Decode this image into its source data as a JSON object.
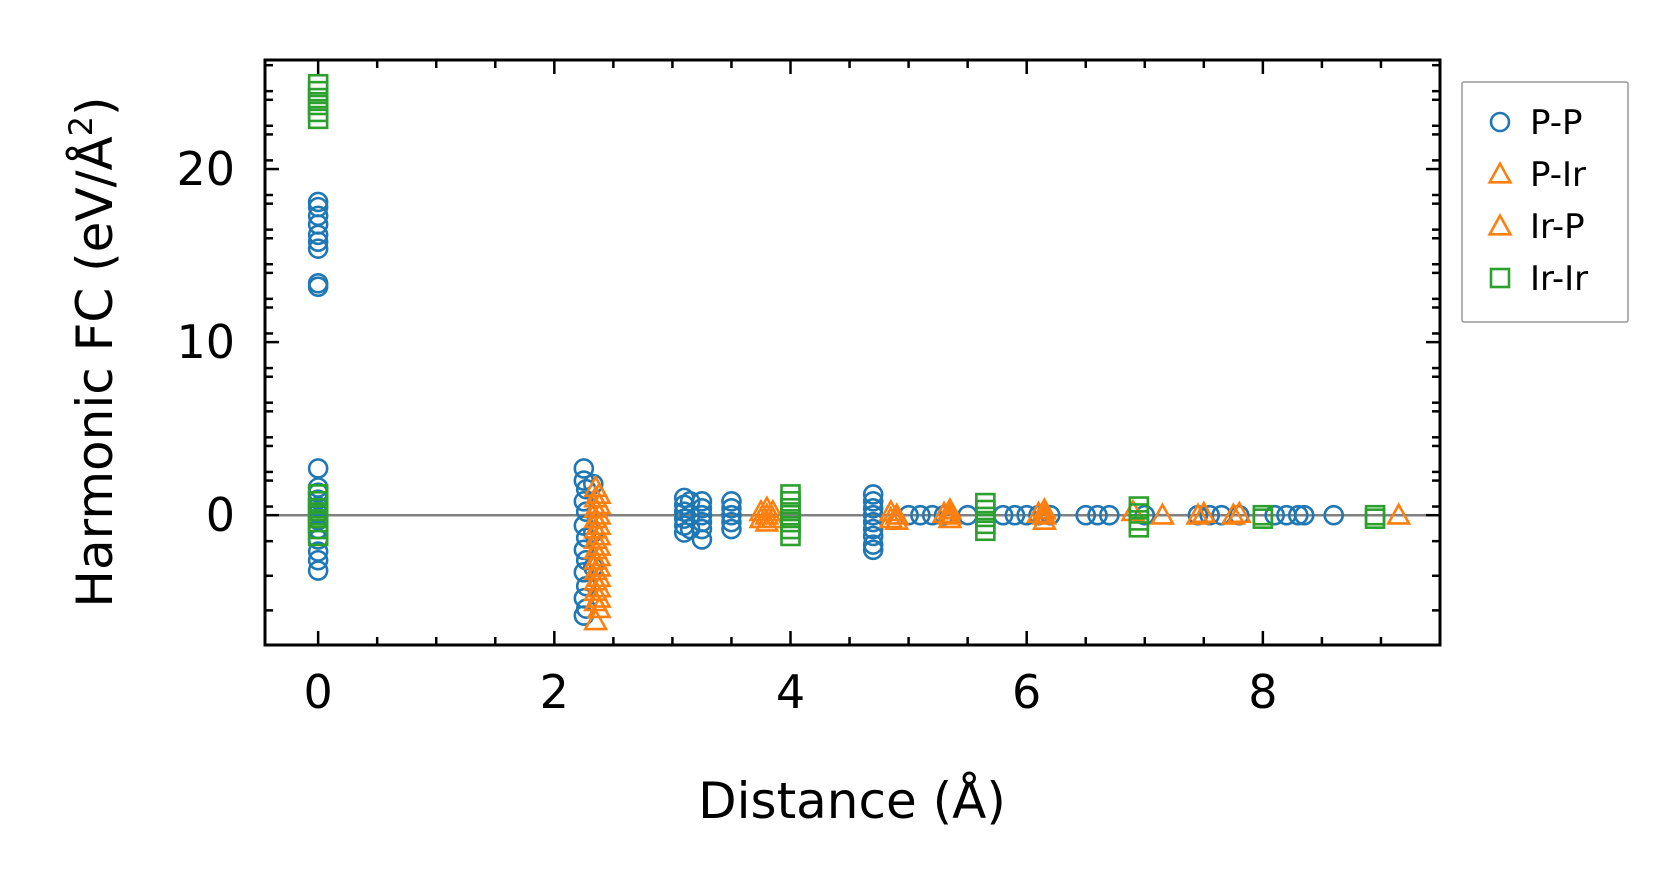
{
  "chart_data": {
    "type": "scatter",
    "title": "",
    "xlabel": "Distance (Å)",
    "ylabel_main": "Harmonic FC (eV/Å",
    "ylabel_sup": "2",
    "ylabel_close": ")",
    "xlim": [
      -0.45,
      9.5
    ],
    "ylim": [
      -7.5,
      26.3
    ],
    "xticks": [
      0,
      2,
      4,
      6,
      8
    ],
    "xtick_labels": [
      "0",
      "2",
      "4",
      "6",
      "8"
    ],
    "yticks": [
      0,
      10,
      20
    ],
    "ytick_labels": [
      "0",
      "10",
      "20"
    ],
    "zero_line": 0,
    "grid": false,
    "legend_position": "outside right, top",
    "series": [
      {
        "name": "P-P",
        "marker": "circle",
        "color": "#1f77b4",
        "points": [
          [
            0,
            18.1
          ],
          [
            0,
            17.8
          ],
          [
            0,
            17.3
          ],
          [
            0,
            16.8
          ],
          [
            0,
            16.2
          ],
          [
            0,
            15.8
          ],
          [
            0,
            15.4
          ],
          [
            0,
            13.4
          ],
          [
            0,
            13.2
          ],
          [
            0,
            2.7
          ],
          [
            0,
            1.6
          ],
          [
            0,
            1.3
          ],
          [
            0,
            0.9
          ],
          [
            0,
            0.5
          ],
          [
            0,
            0.1
          ],
          [
            0,
            -0.3
          ],
          [
            0,
            -0.8
          ],
          [
            0,
            -1.4
          ],
          [
            0,
            -2.1
          ],
          [
            0,
            -2.6
          ],
          [
            0,
            -3.2
          ],
          [
            2.25,
            2.7
          ],
          [
            2.25,
            2.0
          ],
          [
            2.27,
            1.5
          ],
          [
            2.25,
            0.8
          ],
          [
            2.27,
            0.2
          ],
          [
            2.25,
            -0.6
          ],
          [
            2.27,
            -1.3
          ],
          [
            2.25,
            -2.0
          ],
          [
            2.27,
            -2.6
          ],
          [
            2.25,
            -3.3
          ],
          [
            2.27,
            -4.1
          ],
          [
            2.25,
            -4.8
          ],
          [
            2.27,
            -5.4
          ],
          [
            2.25,
            -5.8
          ],
          [
            2.33,
            1.8
          ],
          [
            2.33,
            -1.0
          ],
          [
            2.33,
            -3.0
          ],
          [
            3.1,
            1.0
          ],
          [
            3.1,
            0.6
          ],
          [
            3.1,
            0.2
          ],
          [
            3.1,
            -0.2
          ],
          [
            3.1,
            -0.6
          ],
          [
            3.1,
            -1.0
          ],
          [
            3.15,
            0.8
          ],
          [
            3.15,
            0.0
          ],
          [
            3.15,
            -0.8
          ],
          [
            3.25,
            0.8
          ],
          [
            3.25,
            0.4
          ],
          [
            3.25,
            0.0
          ],
          [
            3.25,
            -0.4
          ],
          [
            3.25,
            -0.8
          ],
          [
            3.25,
            -1.4
          ],
          [
            3.5,
            0.8
          ],
          [
            3.5,
            0.4
          ],
          [
            3.5,
            0.0
          ],
          [
            3.5,
            -0.4
          ],
          [
            3.5,
            -0.8
          ],
          [
            4.7,
            1.2
          ],
          [
            4.7,
            0.8
          ],
          [
            4.7,
            0.4
          ],
          [
            4.7,
            0.0
          ],
          [
            4.7,
            -0.4
          ],
          [
            4.7,
            -0.8
          ],
          [
            4.7,
            -1.2
          ],
          [
            4.7,
            -1.7
          ],
          [
            4.7,
            -2.0
          ],
          [
            5.0,
            0.0
          ],
          [
            5.1,
            0.0
          ],
          [
            5.2,
            0.0
          ],
          [
            5.3,
            0.0
          ],
          [
            5.5,
            0.0
          ],
          [
            5.8,
            0.0
          ],
          [
            5.9,
            0.0
          ],
          [
            6.0,
            0.0
          ],
          [
            6.1,
            0.0
          ],
          [
            6.2,
            0.0
          ],
          [
            6.5,
            0.0
          ],
          [
            6.6,
            0.0
          ],
          [
            6.7,
            0.0
          ],
          [
            7.0,
            0.0
          ],
          [
            7.45,
            0.0
          ],
          [
            7.55,
            0.0
          ],
          [
            7.65,
            0.0
          ],
          [
            7.8,
            0.0
          ],
          [
            8.1,
            0.0
          ],
          [
            8.2,
            0.0
          ],
          [
            8.3,
            0.0
          ],
          [
            8.35,
            0.0
          ],
          [
            8.6,
            0.0
          ]
        ]
      },
      {
        "name": "P-Ir",
        "marker": "triangle",
        "color": "#ff7f0e",
        "points": [
          [
            2.35,
            1.6
          ],
          [
            2.35,
            1.0
          ],
          [
            2.35,
            0.4
          ],
          [
            2.35,
            -0.2
          ],
          [
            2.35,
            -0.8
          ],
          [
            2.35,
            -1.4
          ],
          [
            2.35,
            -2.0
          ],
          [
            2.35,
            -2.6
          ],
          [
            2.35,
            -3.2
          ],
          [
            2.35,
            -3.8
          ],
          [
            2.35,
            -4.4
          ],
          [
            2.35,
            -5.0
          ],
          [
            2.35,
            -6.1
          ],
          [
            3.8,
            0.4
          ],
          [
            3.8,
            0.0
          ],
          [
            3.8,
            -0.4
          ],
          [
            3.85,
            0.2
          ],
          [
            3.85,
            -0.2
          ],
          [
            4.9,
            0.0
          ],
          [
            4.9,
            -0.3
          ],
          [
            5.35,
            0.3
          ],
          [
            5.35,
            0.0
          ],
          [
            5.35,
            -0.2
          ],
          [
            6.15,
            0.3
          ],
          [
            6.15,
            0.0
          ],
          [
            6.15,
            -0.3
          ],
          [
            6.9,
            0.2
          ],
          [
            7.15,
            0.0
          ],
          [
            7.45,
            0.0
          ],
          [
            7.75,
            0.0
          ],
          [
            9.15,
            0.0
          ]
        ]
      },
      {
        "name": "Ir-P",
        "marker": "triangle",
        "color": "#ff7f0e",
        "points": [
          [
            2.38,
            1.2
          ],
          [
            2.38,
            0.6
          ],
          [
            2.38,
            0.0
          ],
          [
            2.38,
            -0.6
          ],
          [
            2.38,
            -1.2
          ],
          [
            2.38,
            -1.8
          ],
          [
            2.38,
            -2.4
          ],
          [
            2.38,
            -3.0
          ],
          [
            2.38,
            -3.6
          ],
          [
            2.38,
            -4.2
          ],
          [
            2.38,
            -4.8
          ],
          [
            2.38,
            -5.4
          ],
          [
            3.75,
            0.2
          ],
          [
            3.75,
            -0.2
          ],
          [
            4.85,
            0.2
          ],
          [
            4.85,
            -0.2
          ],
          [
            5.3,
            0.1
          ],
          [
            6.1,
            0.1
          ],
          [
            7.5,
            0.1
          ],
          [
            7.8,
            0.1
          ]
        ]
      },
      {
        "name": "Ir-Ir",
        "marker": "square",
        "color": "#2ca02c",
        "points": [
          [
            0,
            24.9
          ],
          [
            0,
            24.5
          ],
          [
            0,
            24.1
          ],
          [
            0,
            23.7
          ],
          [
            0,
            23.3
          ],
          [
            0,
            22.9
          ],
          [
            0,
            1.2
          ],
          [
            0,
            0.8
          ],
          [
            0,
            0.4
          ],
          [
            0,
            0.0
          ],
          [
            0,
            -0.4
          ],
          [
            0,
            -0.8
          ],
          [
            0,
            -1.2
          ],
          [
            4.0,
            1.2
          ],
          [
            4.0,
            0.8
          ],
          [
            4.0,
            0.4
          ],
          [
            4.0,
            0.0
          ],
          [
            4.0,
            -0.4
          ],
          [
            4.0,
            -0.8
          ],
          [
            4.0,
            -1.2
          ],
          [
            5.65,
            0.7
          ],
          [
            5.65,
            0.3
          ],
          [
            5.65,
            -0.1
          ],
          [
            5.65,
            -0.5
          ],
          [
            5.65,
            -0.9
          ],
          [
            6.95,
            0.5
          ],
          [
            6.95,
            0.1
          ],
          [
            6.95,
            -0.3
          ],
          [
            6.95,
            -0.7
          ],
          [
            8.0,
            0.0
          ],
          [
            8.0,
            -0.2
          ],
          [
            8.95,
            0.0
          ],
          [
            8.95,
            -0.2
          ]
        ]
      }
    ],
    "legend": [
      {
        "label": "P-P",
        "marker": "circle",
        "color": "#1f77b4"
      },
      {
        "label": "P-Ir",
        "marker": "triangle",
        "color": "#ff7f0e"
      },
      {
        "label": "Ir-P",
        "marker": "triangle",
        "color": "#ff7f0e"
      },
      {
        "label": "Ir-Ir",
        "marker": "square",
        "color": "#2ca02c"
      }
    ]
  }
}
